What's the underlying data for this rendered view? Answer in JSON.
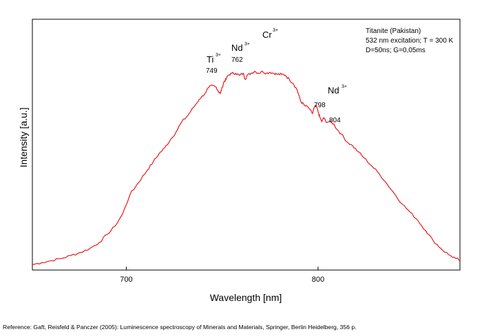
{
  "chart_data": {
    "type": "line",
    "xlabel": "Wavelength [nm]",
    "ylabel": "Intensity [a.u.]",
    "xlim": [
      651,
      874
    ],
    "ylim": [
      0,
      1
    ],
    "xticks": [
      700,
      800
    ],
    "yticks": [],
    "grid": false,
    "line_color": "#e8191d",
    "info_lines": [
      "Titanite (Pakistan)",
      "532 nm excitation; T = 300 K",
      "D=50ns; G=0,05ms"
    ],
    "annotations": [
      {
        "ion": "Ti",
        "charge": "3+",
        "label": "749"
      },
      {
        "ion": "Nd",
        "charge": "3+",
        "label": "762"
      },
      {
        "ion": "Cr",
        "charge": "3+",
        "label": ""
      },
      {
        "ion": "Nd",
        "charge": "3+",
        "label": "798"
      },
      {
        "ion": "",
        "charge": "",
        "label": "804"
      }
    ],
    "series": [
      {
        "x": [
          651,
          656,
          661,
          666,
          671,
          676,
          681,
          686,
          690,
          694,
          698,
          702,
          705,
          708,
          711,
          714,
          717,
          720,
          723,
          726,
          729,
          732,
          735,
          738,
          741,
          743,
          745,
          747,
          748,
          749,
          750,
          751,
          752,
          753,
          755,
          757,
          759,
          761,
          762,
          763,
          765,
          767,
          769,
          771,
          773,
          775,
          777,
          779,
          781,
          783,
          785,
          787,
          789,
          790,
          791,
          793,
          795,
          797,
          798,
          799,
          800,
          801,
          802,
          803,
          804,
          806,
          808,
          810,
          812,
          815,
          818,
          821,
          824,
          828,
          832,
          836,
          840,
          844,
          848,
          852,
          856,
          860,
          864,
          868,
          872,
          874
        ],
        "y": [
          0.01,
          0.02,
          0.03,
          0.04,
          0.055,
          0.07,
          0.09,
          0.12,
          0.16,
          0.2,
          0.26,
          0.36,
          0.4,
          0.44,
          0.48,
          0.52,
          0.56,
          0.59,
          0.63,
          0.67,
          0.72,
          0.75,
          0.79,
          0.83,
          0.86,
          0.89,
          0.9,
          0.89,
          0.87,
          0.86,
          0.89,
          0.92,
          0.93,
          0.95,
          0.96,
          0.96,
          0.95,
          0.96,
          0.93,
          0.95,
          0.96,
          0.97,
          0.96,
          0.97,
          0.96,
          0.965,
          0.96,
          0.955,
          0.955,
          0.95,
          0.93,
          0.91,
          0.88,
          0.85,
          0.82,
          0.8,
          0.79,
          0.76,
          0.79,
          0.8,
          0.77,
          0.74,
          0.72,
          0.74,
          0.72,
          0.72,
          0.71,
          0.68,
          0.66,
          0.62,
          0.6,
          0.57,
          0.54,
          0.5,
          0.46,
          0.41,
          0.36,
          0.31,
          0.27,
          0.23,
          0.18,
          0.13,
          0.09,
          0.06,
          0.04,
          0.03
        ]
      }
    ]
  },
  "reference": "Reference: Gaft, Reisfeld & Panczer (2005): Luminescence spectroscopy of Minerals and Materials, Springer, Berlin Heidelberg, 356 p."
}
